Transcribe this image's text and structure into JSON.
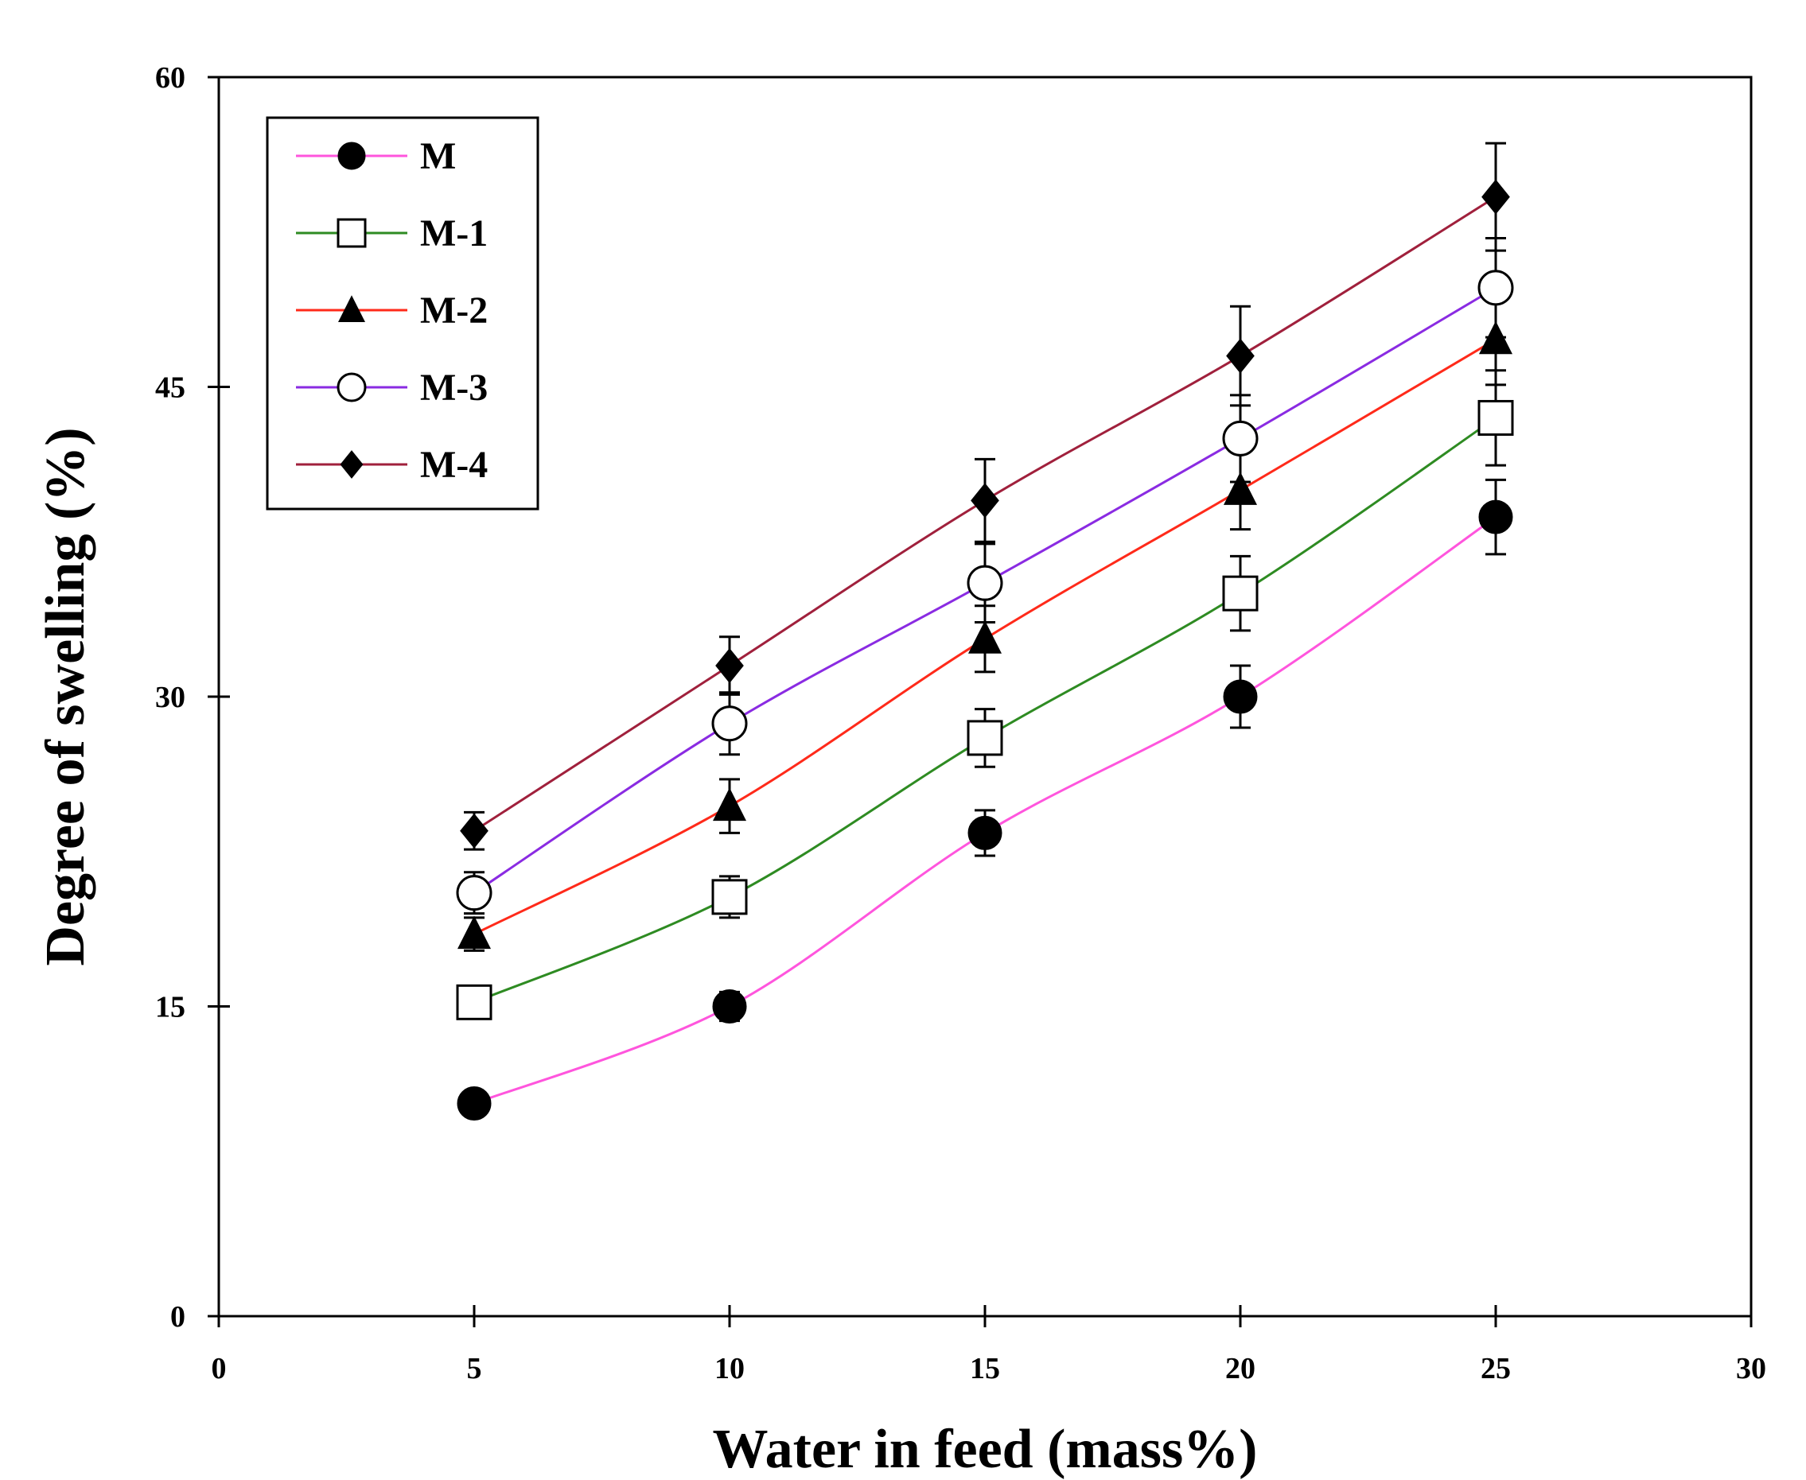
{
  "chart_data": {
    "type": "line",
    "title": "",
    "xlabel": "Water in feed (mass%)",
    "ylabel": "Degree of swelling (%)",
    "xlim": [
      0,
      30
    ],
    "ylim": [
      0,
      60
    ],
    "xticks": [
      "0",
      "5",
      "10",
      "15",
      "20",
      "25",
      "30"
    ],
    "yticks": [
      "0",
      "15",
      "30",
      "45",
      "60"
    ],
    "x": [
      5,
      10,
      15,
      20,
      25
    ],
    "legend_position": "top-left",
    "grid": false,
    "series": [
      {
        "name": "M",
        "marker": "filled-circle",
        "color": "#ff55dd",
        "values": [
          10.3,
          15.0,
          23.4,
          30.0,
          38.7
        ],
        "errors": [
          0.4,
          0.7,
          1.1,
          1.5,
          1.8
        ]
      },
      {
        "name": "M-1",
        "marker": "open-square",
        "color": "#2e8b22",
        "values": [
          15.2,
          20.3,
          28.0,
          35.0,
          43.5
        ],
        "errors": [
          0.5,
          1.0,
          1.4,
          1.8,
          2.3
        ]
      },
      {
        "name": "M-2",
        "marker": "filled-triangle",
        "color": "#ff2a1a",
        "values": [
          18.5,
          24.7,
          32.8,
          40.0,
          47.3
        ],
        "errors": [
          0.8,
          1.3,
          1.6,
          1.9,
          2.2
        ]
      },
      {
        "name": "M-3",
        "marker": "open-circle",
        "color": "#8a2be2",
        "values": [
          20.5,
          28.7,
          35.5,
          42.5,
          49.8
        ],
        "errors": [
          1.0,
          1.5,
          1.9,
          2.1,
          2.4
        ]
      },
      {
        "name": "M-4",
        "marker": "filled-diamond",
        "color": "#a0203c",
        "values": [
          23.5,
          31.5,
          39.5,
          46.5,
          54.2
        ],
        "errors": [
          0.9,
          1.4,
          2.0,
          2.4,
          2.6
        ]
      }
    ]
  }
}
